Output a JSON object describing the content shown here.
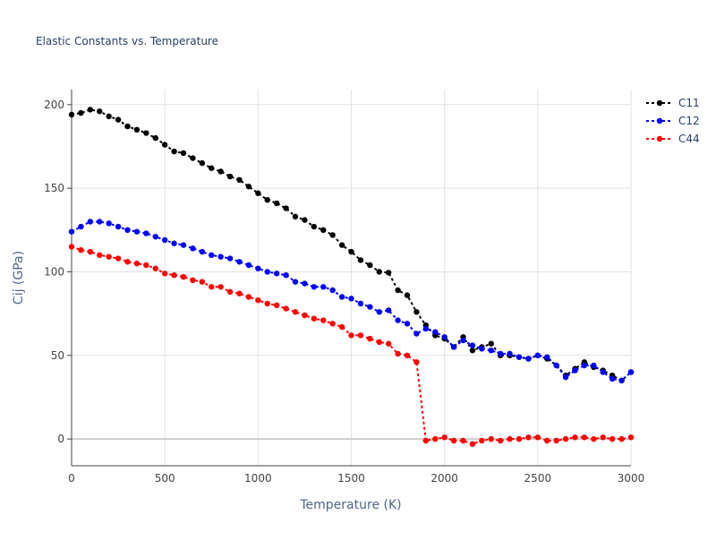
{
  "chart_data": {
    "type": "line",
    "title": "Elastic Constants vs. Temperature",
    "xlabel": "Temperature (K)",
    "ylabel": "Cij (GPa)",
    "xlim": [
      0,
      3000
    ],
    "ylim": [
      -16,
      209
    ],
    "xticks": [
      0,
      500,
      1000,
      1500,
      2000,
      2500,
      3000
    ],
    "yticks": [
      0,
      50,
      100,
      150,
      200
    ],
    "grid": true,
    "legend": "top-right",
    "x": [
      0,
      50,
      100,
      150,
      200,
      250,
      300,
      350,
      400,
      450,
      500,
      550,
      600,
      650,
      700,
      750,
      800,
      850,
      900,
      950,
      1000,
      1050,
      1100,
      1150,
      1200,
      1250,
      1300,
      1350,
      1400,
      1450,
      1500,
      1550,
      1600,
      1650,
      1700,
      1750,
      1800,
      1850,
      1900,
      1950,
      2000,
      2050,
      2100,
      2150,
      2200,
      2250,
      2300,
      2350,
      2400,
      2450,
      2500,
      2550,
      2600,
      2650,
      2700,
      2750,
      2800,
      2850,
      2900,
      2950,
      3000
    ],
    "series": [
      {
        "name": "C11",
        "color": "#000000",
        "values": [
          194,
          195,
          197,
          196,
          193,
          191,
          187,
          185,
          183,
          180,
          176,
          172,
          171,
          168,
          165,
          162,
          160,
          157,
          155,
          151,
          147,
          143,
          141,
          138,
          133,
          131,
          127,
          125,
          122,
          116,
          112,
          107,
          104,
          100,
          99.5,
          89,
          86,
          76,
          68,
          62,
          60,
          55,
          61,
          53,
          55,
          57,
          50,
          50,
          49,
          48,
          50,
          48,
          44,
          38,
          42,
          46,
          43,
          41,
          38,
          35,
          40
        ]
      },
      {
        "name": "C12",
        "color": "#0000ff",
        "values": [
          124,
          127,
          130,
          130,
          129,
          127,
          125,
          124,
          123,
          121,
          119,
          117,
          116,
          114,
          112,
          110,
          109,
          108,
          106,
          104,
          102,
          100,
          99,
          98,
          94,
          93,
          91,
          91,
          89,
          85,
          84,
          81,
          79,
          76,
          77,
          71,
          69,
          63,
          66,
          64,
          61,
          55,
          59,
          56,
          54,
          53,
          51,
          51,
          49,
          48,
          50,
          49,
          44,
          37,
          41,
          44,
          44,
          40,
          36,
          35,
          40
        ]
      },
      {
        "name": "C44",
        "color": "#ff0000",
        "values": [
          115,
          113,
          112,
          110,
          109,
          108,
          106,
          105,
          104,
          102,
          99,
          98,
          97,
          95,
          94,
          91,
          91,
          88,
          87,
          85,
          83,
          81,
          80,
          78,
          76,
          74,
          72,
          71,
          69,
          67,
          62,
          62,
          60,
          58,
          57,
          51,
          50,
          46,
          -1,
          0,
          1,
          -1,
          -1,
          -3,
          -1,
          0,
          -1,
          0,
          0,
          1,
          1,
          -1,
          -1,
          0,
          1,
          1,
          0,
          1,
          0,
          0,
          1
        ]
      }
    ]
  }
}
